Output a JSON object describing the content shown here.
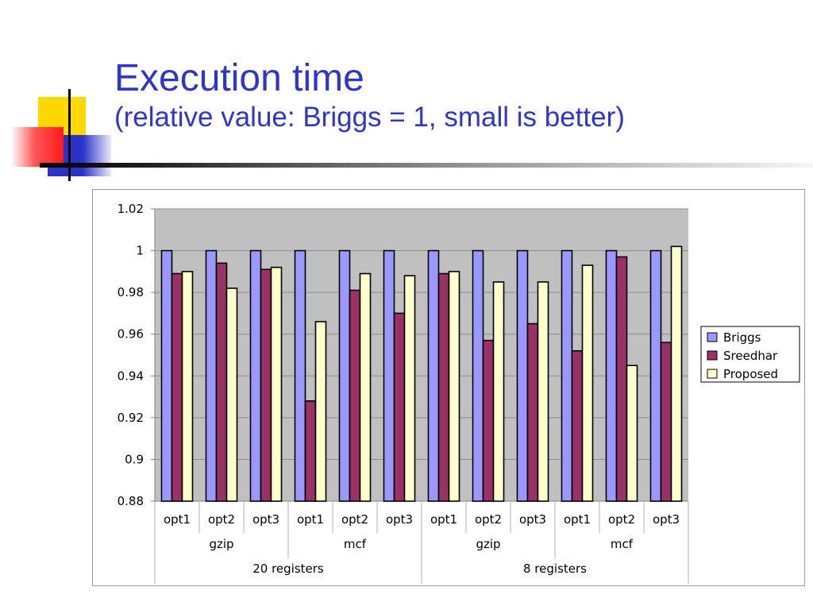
{
  "slide": {
    "title": "Execution time",
    "subtitle": "(relative value: Briggs = 1, small is better)",
    "colors": {
      "title": "#2f36c4",
      "deco_yellow": "#ffd800",
      "deco_red": "#ff2020",
      "deco_blue": "#2a32c8"
    }
  },
  "chart_data": {
    "type": "bar",
    "categories": [
      "opt1",
      "opt2",
      "opt3",
      "opt1",
      "opt2",
      "opt3",
      "opt1",
      "opt2",
      "opt3",
      "opt1",
      "opt2",
      "opt3"
    ],
    "category_groups": [
      {
        "label": "gzip"
      },
      {
        "label": "mcf"
      },
      {
        "label": "gzip"
      },
      {
        "label": "mcf"
      }
    ],
    "outer_groups": [
      {
        "label": "20 registers"
      },
      {
        "label": "8 registers"
      }
    ],
    "series": [
      {
        "name": "Briggs",
        "color": "#9999ff",
        "values": [
          1,
          1,
          1,
          1,
          1,
          1,
          1,
          1,
          1,
          1,
          1,
          1
        ]
      },
      {
        "name": "Sreedhar",
        "color": "#993366",
        "values": [
          0.989,
          0.994,
          0.991,
          0.928,
          0.981,
          0.97,
          0.989,
          0.957,
          0.965,
          0.952,
          0.997,
          0.956
        ]
      },
      {
        "name": "Proposed",
        "color": "#ffffcc",
        "values": [
          0.99,
          0.982,
          0.992,
          0.966,
          0.989,
          0.988,
          0.99,
          0.985,
          0.985,
          0.993,
          0.945,
          1.002
        ]
      }
    ],
    "ylim": [
      0.88,
      1.02
    ],
    "yticks": [
      "0.88",
      "0.9",
      "0.92",
      "0.94",
      "0.96",
      "0.98",
      "1",
      "1.02"
    ],
    "legend_position": "right",
    "grid": true,
    "plot_background": "#c0c0c0"
  }
}
